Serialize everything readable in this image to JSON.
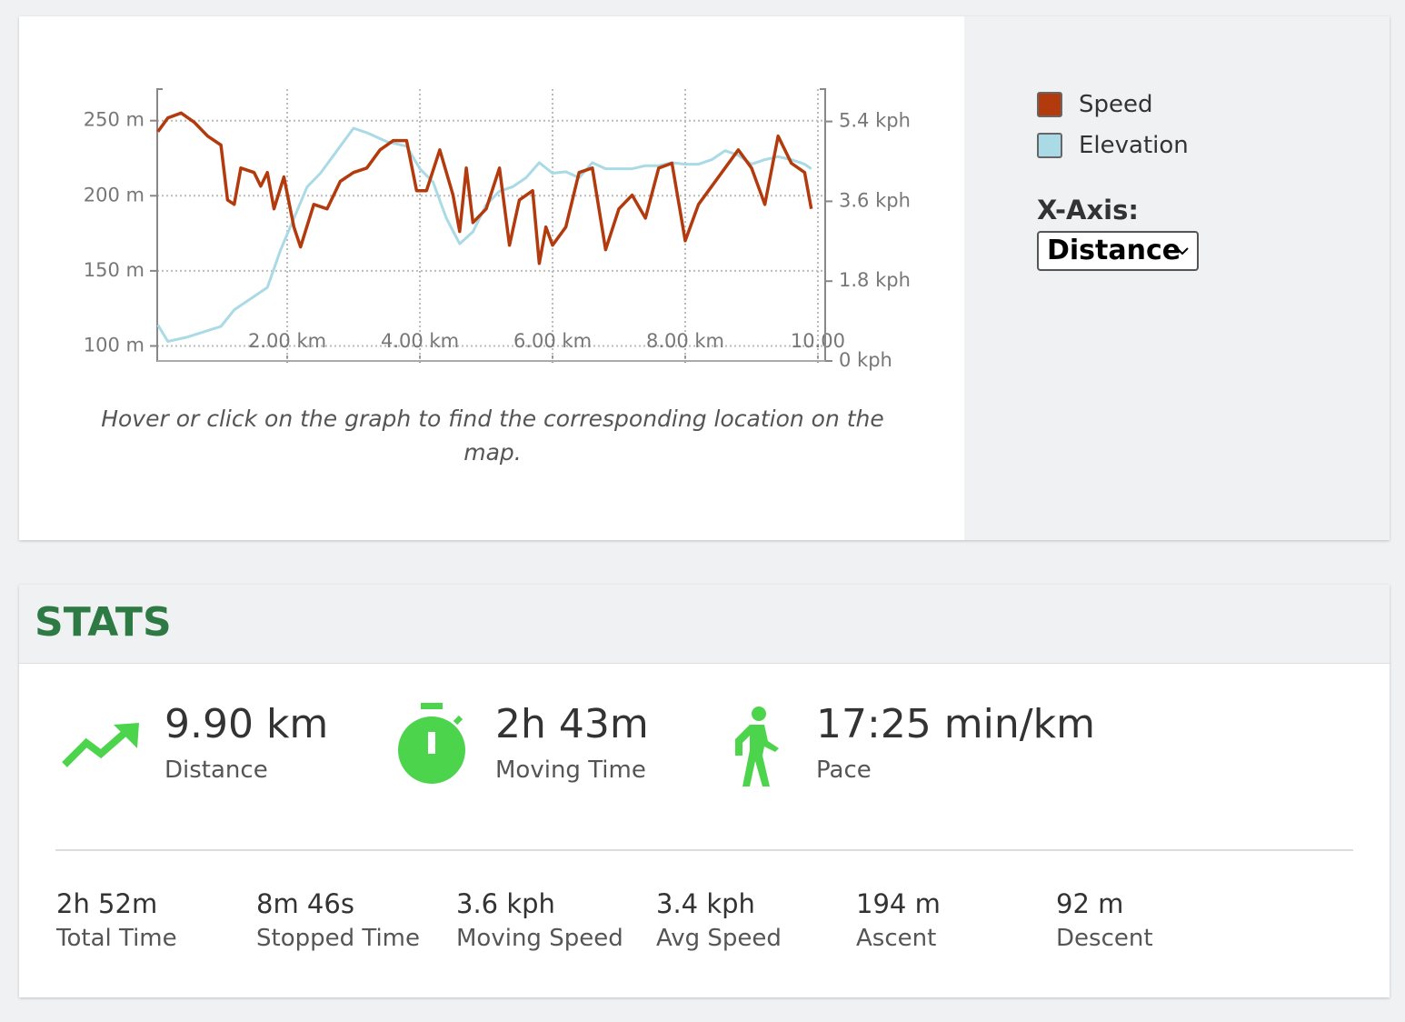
{
  "chart_data": {
    "type": "line",
    "ylim": [
      90,
      271
    ],
    "yticks": [
      {
        "value": 100,
        "label": "100 m"
      },
      {
        "value": 150,
        "label": "150 m"
      },
      {
        "value": 200,
        "label": "200 m"
      },
      {
        "value": 250,
        "label": "250 m"
      }
    ],
    "y2lim": [
      0,
      6.13
    ],
    "y2ticks": [
      {
        "value": 0,
        "label": "0 kph"
      },
      {
        "value": 1.8,
        "label": "1.8 kph"
      },
      {
        "value": 3.6,
        "label": "3.6 kph"
      },
      {
        "value": 5.4,
        "label": "5.4 kph"
      }
    ],
    "xlim": [
      0.04,
      10.11
    ],
    "xticks": [
      {
        "value": 2,
        "label": "2.00 km"
      },
      {
        "value": 4,
        "label": "4.00 km"
      },
      {
        "value": 6,
        "label": "6.00 km"
      },
      {
        "value": 8,
        "label": "8.00 km"
      },
      {
        "value": 10,
        "label": "10.00"
      }
    ],
    "grid": true,
    "series": [
      {
        "name": "Speed",
        "color": "#b23a0c",
        "axis": "y2",
        "x": [
          0.05,
          0.2,
          0.4,
          0.6,
          0.8,
          1.0,
          1.1,
          1.2,
          1.3,
          1.5,
          1.6,
          1.7,
          1.8,
          1.95,
          2.1,
          2.2,
          2.4,
          2.6,
          2.8,
          3.0,
          3.2,
          3.4,
          3.6,
          3.8,
          3.95,
          4.1,
          4.3,
          4.5,
          4.6,
          4.7,
          4.8,
          5.0,
          5.2,
          5.35,
          5.5,
          5.7,
          5.8,
          5.9,
          6.0,
          6.2,
          6.4,
          6.6,
          6.8,
          7.0,
          7.2,
          7.4,
          7.6,
          7.8,
          8.0,
          8.2,
          8.4,
          8.6,
          8.8,
          9.0,
          9.2,
          9.4,
          9.6,
          9.8,
          9.9
        ],
        "values": [
          5.17,
          5.48,
          5.59,
          5.38,
          5.07,
          4.87,
          3.63,
          3.53,
          4.35,
          4.25,
          3.94,
          4.25,
          3.43,
          4.15,
          3.02,
          2.57,
          3.53,
          3.43,
          4.05,
          4.25,
          4.35,
          4.76,
          4.97,
          4.97,
          3.84,
          3.84,
          4.76,
          3.74,
          2.92,
          4.35,
          3.12,
          3.43,
          4.35,
          2.61,
          3.63,
          3.84,
          2.2,
          3.02,
          2.61,
          3.02,
          4.25,
          4.35,
          2.51,
          3.43,
          3.74,
          3.22,
          4.35,
          4.46,
          2.71,
          3.53,
          3.94,
          4.35,
          4.76,
          4.35,
          3.53,
          5.07,
          4.46,
          4.25,
          3.43
        ]
      },
      {
        "name": "Elevation",
        "color": "#a9dae5",
        "x": [
          0.05,
          0.2,
          0.5,
          1.0,
          1.2,
          1.5,
          1.7,
          1.9,
          2.1,
          2.3,
          2.5,
          2.7,
          2.9,
          3.0,
          3.2,
          3.5,
          3.8,
          4.0,
          4.2,
          4.4,
          4.6,
          4.8,
          5.0,
          5.2,
          5.4,
          5.6,
          5.8,
          6.0,
          6.2,
          6.4,
          6.6,
          6.8,
          7.0,
          7.2,
          7.4,
          7.6,
          7.8,
          8.0,
          8.2,
          8.4,
          8.6,
          8.8,
          9.0,
          9.2,
          9.4,
          9.6,
          9.8,
          9.9
        ],
        "values": [
          114,
          103,
          106,
          113,
          124,
          133,
          139,
          164,
          185,
          206,
          215,
          227,
          239,
          245,
          242,
          236,
          233,
          218,
          209,
          185,
          168,
          176,
          194,
          203,
          206,
          212,
          222,
          215,
          216,
          212,
          222,
          218,
          218,
          218,
          220,
          220,
          222,
          221,
          221,
          224,
          230,
          227,
          221,
          224,
          226,
          224,
          221,
          218
        ]
      }
    ]
  },
  "caption": "Hover or click on the graph to find the corresponding location on the map.",
  "x_axis_label": "X-Axis:",
  "x_axis_option": "Distance",
  "stats": {
    "title": "STATS",
    "main": [
      {
        "value": "9.90 km",
        "label": "Distance"
      },
      {
        "value": "2h 43m",
        "label": "Moving Time"
      },
      {
        "value": "17:25 min/km",
        "label": "Pace"
      }
    ],
    "details": [
      {
        "value": "2h 52m",
        "label": "Total Time"
      },
      {
        "value": "8m 46s",
        "label": "Stopped Time"
      },
      {
        "value": "3.6 kph",
        "label": "Moving Speed"
      },
      {
        "value": "3.4 kph",
        "label": "Avg Speed"
      },
      {
        "value": "194 m",
        "label": "Ascent"
      },
      {
        "value": "92 m",
        "label": "Descent"
      }
    ]
  }
}
